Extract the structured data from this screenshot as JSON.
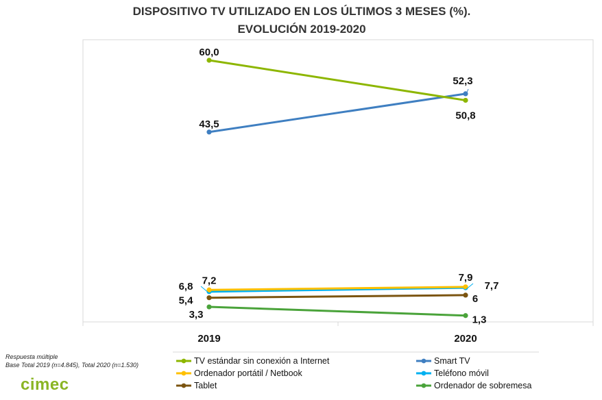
{
  "chart_data": {
    "type": "line",
    "title": "DISPOSITIVO TV UTILIZADO EN LOS ÚLTIMOS 3 MESES (%).",
    "subtitle": "EVOLUCIÓN 2019-2020",
    "categories": [
      "2019",
      "2020"
    ],
    "ylim": [
      0,
      65
    ],
    "grid": false,
    "legend_position": "bottom",
    "series": [
      {
        "name": "TV estándar sin conexión a Internet",
        "values": [
          60.0,
          50.8
        ],
        "labels": [
          "60,0",
          "50,8"
        ],
        "color": "#8db600"
      },
      {
        "name": "Smart TV",
        "values": [
          43.5,
          52.3
        ],
        "labels": [
          "43,5",
          "52,3"
        ],
        "color": "#3f7fc1"
      },
      {
        "name": "Ordenador portátil / Netbook",
        "values": [
          7.2,
          7.9
        ],
        "labels": [
          "7,2",
          "7,9"
        ],
        "color": "#ffc000"
      },
      {
        "name": "Teléfono móvil",
        "values": [
          6.8,
          7.7
        ],
        "labels": [
          "6,8",
          "7,7"
        ],
        "color": "#00b0f0"
      },
      {
        "name": "Tablet",
        "values": [
          5.4,
          6
        ],
        "labels": [
          "5,4",
          "6"
        ],
        "color": "#7b5410"
      },
      {
        "name": "Ordenador de sobremesa",
        "values": [
          3.3,
          1.3
        ],
        "labels": [
          "3,3",
          "1,3"
        ],
        "color": "#4aa33a"
      }
    ]
  },
  "notes": {
    "line1": "Respuesta múltiple",
    "line2": "Base Total 2019 (n=4.845), Total 2020 (n=1.530)"
  },
  "logo": {
    "text": "cimec"
  }
}
